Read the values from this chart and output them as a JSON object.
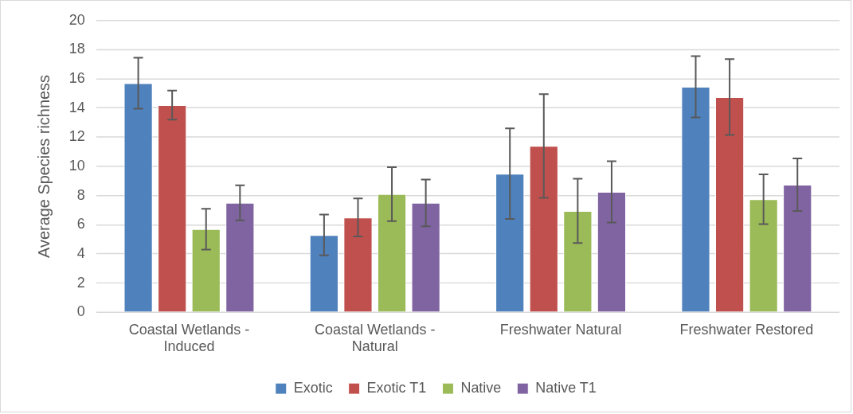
{
  "chart_data": {
    "type": "bar",
    "ylabel": "Average Species richness",
    "categories": [
      "Coastal Wetlands - Induced",
      "Coastal Wetlands - Natural",
      "Freshwater Natural",
      "Freshwater Restored"
    ],
    "series": [
      {
        "name": "Exotic",
        "color": "#4f81bd",
        "values": [
          15.7,
          5.3,
          9.5,
          15.45
        ],
        "errors": [
          1.75,
          1.4,
          3.1,
          2.1
        ]
      },
      {
        "name": "Exotic T1",
        "color": "#c0504d",
        "values": [
          14.2,
          6.5,
          11.4,
          14.75
        ],
        "errors": [
          1.0,
          1.3,
          3.55,
          2.6
        ]
      },
      {
        "name": "Native",
        "color": "#9bbb59",
        "values": [
          5.7,
          8.1,
          6.95,
          7.75
        ],
        "errors": [
          1.4,
          1.85,
          2.2,
          1.7
        ]
      },
      {
        "name": "Native T1",
        "color": "#8064a2",
        "values": [
          7.5,
          7.5,
          8.25,
          8.75
        ],
        "errors": [
          1.2,
          1.6,
          2.1,
          1.8
        ]
      }
    ],
    "ylim": [
      0,
      20
    ],
    "yticks": [
      0,
      2,
      4,
      6,
      8,
      10,
      12,
      14,
      16,
      18,
      20
    ],
    "grid": "y",
    "legend": "bottom"
  }
}
